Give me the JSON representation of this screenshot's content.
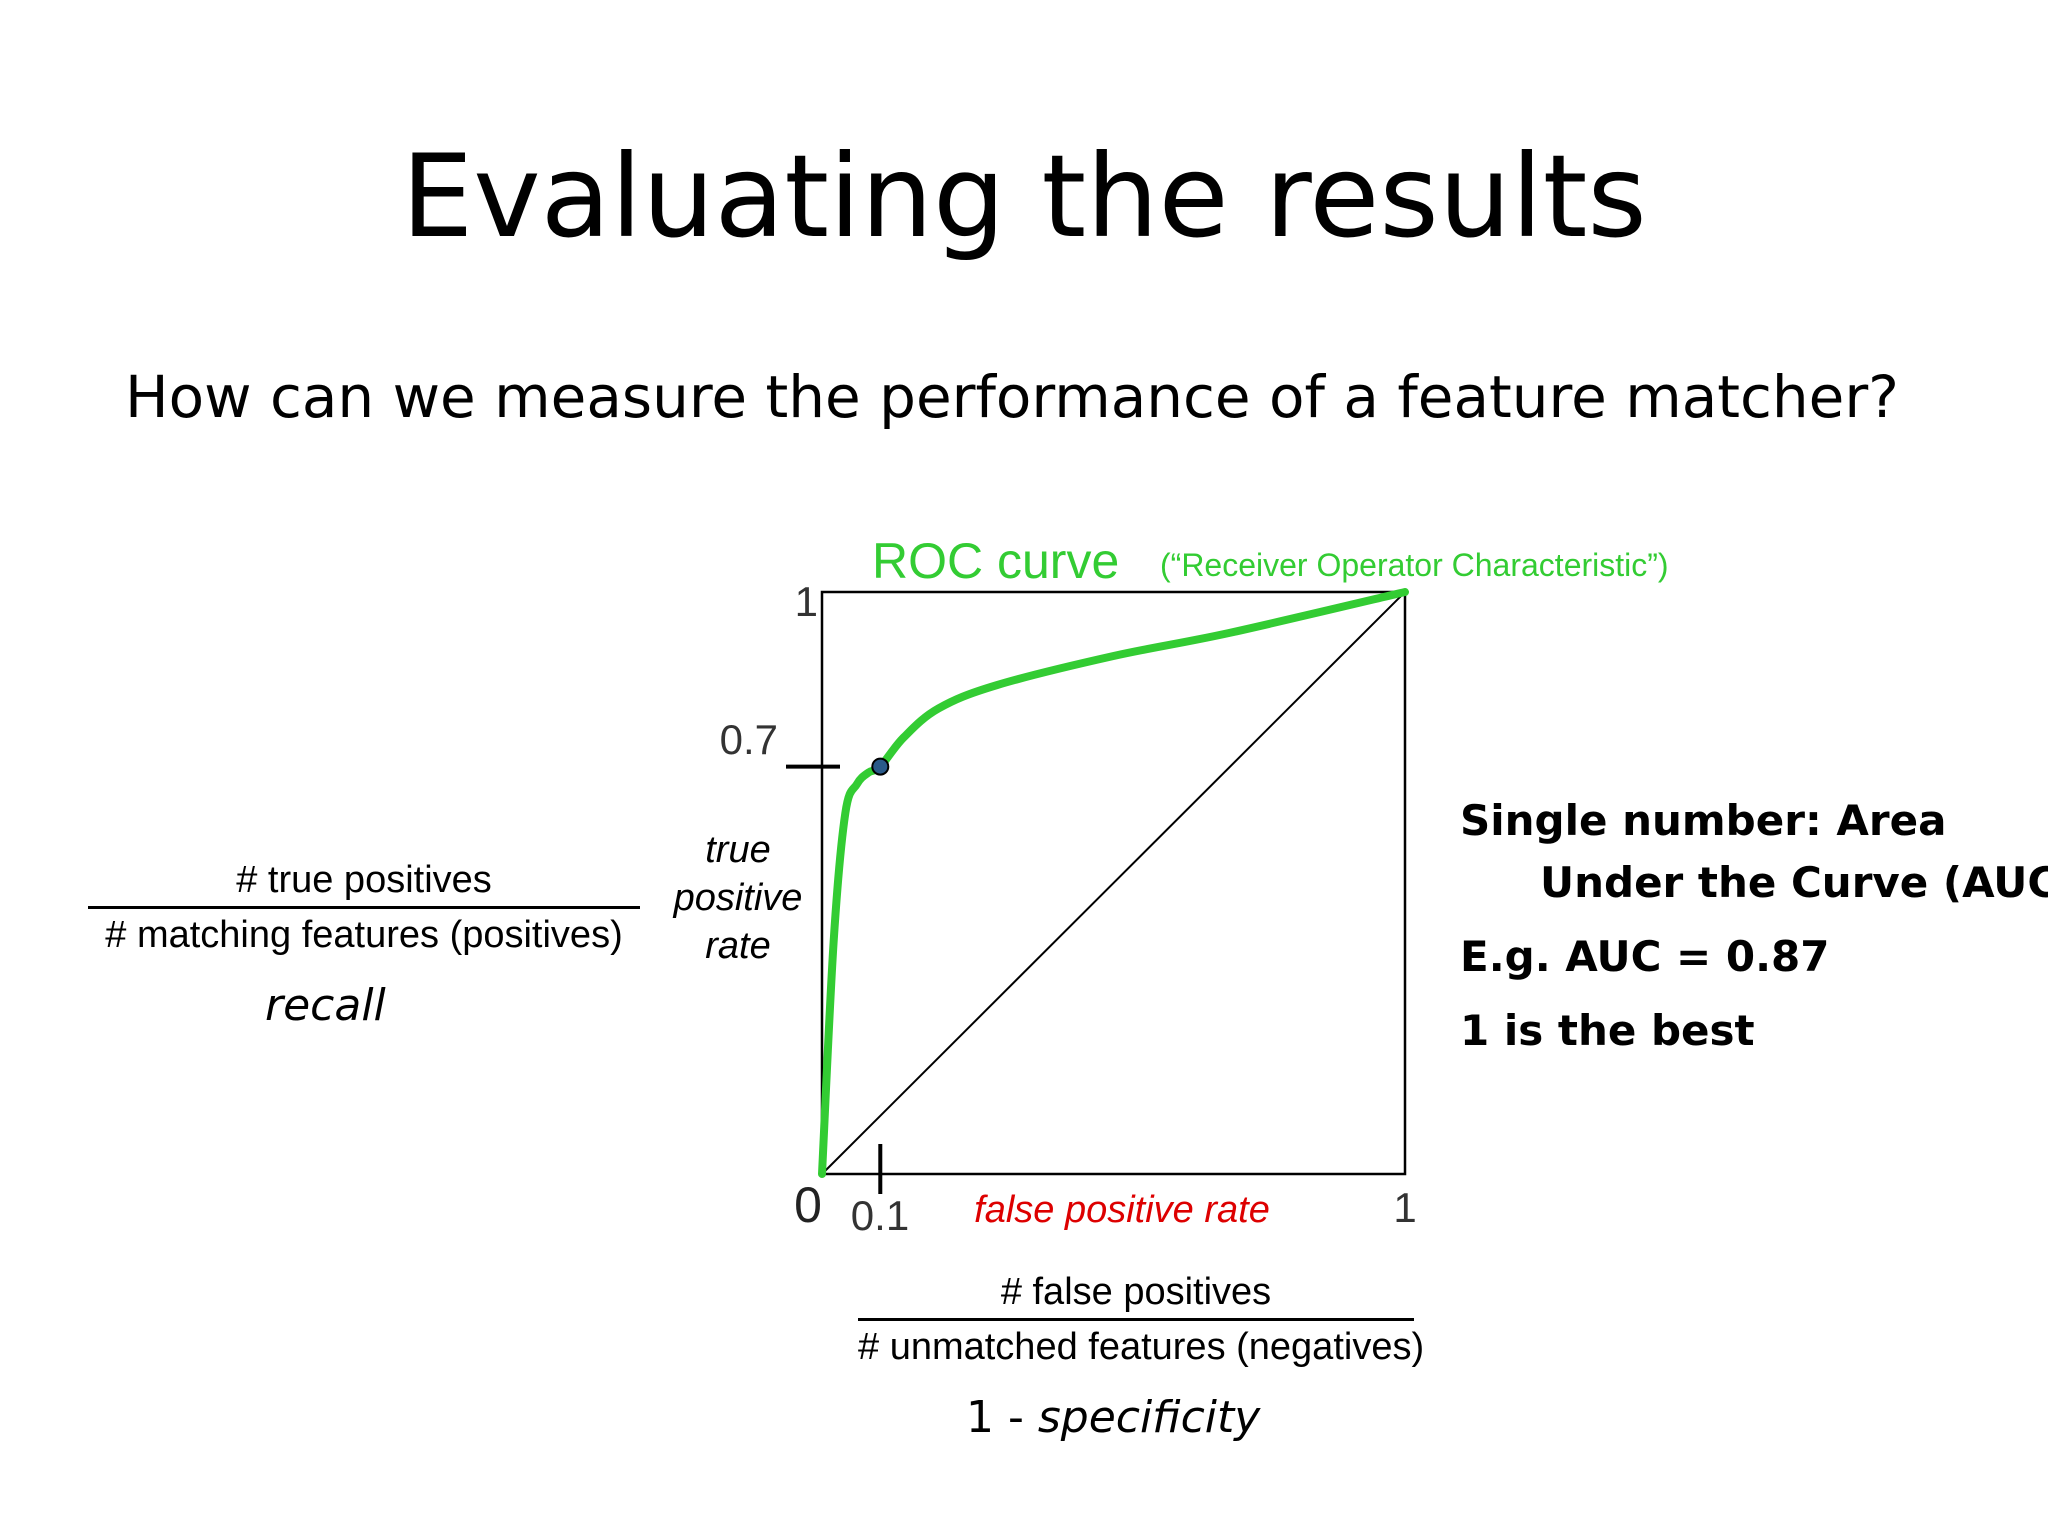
{
  "slide": {
    "title": "Evaluating the results",
    "subtitle": "How can we measure the performance of a feature matcher?"
  },
  "left_fraction": {
    "numerator": "# true positives",
    "denominator": "# matching features (positives)",
    "caption": "recall"
  },
  "bottom_fraction": {
    "numerator": "# false positives",
    "denominator": "# unmatched features (negatives)",
    "caption_prefix": "1 - ",
    "caption_italic": "specificity"
  },
  "auc_text": {
    "line1": "Single number: Area",
    "line2": "Under the Curve (AUC)",
    "line3": "E.g. AUC = 0.87",
    "line4": "1 is the best"
  },
  "colors": {
    "curve": "#33cc33",
    "axis_label": "#dd0000",
    "axis": "#000000",
    "marker": "#2a5a8a"
  },
  "chart_data": {
    "type": "line",
    "title": "ROC curve",
    "subtitle": "(“Receiver Operator Characteristic”)",
    "xlabel": "false positive rate",
    "ylabel": "true positive rate",
    "xlim": [
      0,
      1
    ],
    "ylim": [
      0,
      1
    ],
    "x_tick_labels": [
      "0",
      "0.1",
      "1"
    ],
    "y_tick_labels": [
      "0.7",
      "1"
    ],
    "grid": false,
    "series": [
      {
        "x": [
          0,
          0.02,
          0.04,
          0.06,
          0.08,
          0.1,
          0.14,
          0.2,
          0.3,
          0.5,
          0.7,
          1.0
        ],
        "y": [
          0,
          0.4,
          0.62,
          0.67,
          0.69,
          0.7,
          0.75,
          0.8,
          0.84,
          0.89,
          0.93,
          1.0
        ]
      }
    ],
    "chance_line": {
      "x": [
        0,
        1
      ],
      "y": [
        0,
        1
      ]
    },
    "highlight_point": {
      "x": 0.1,
      "y": 0.7
    },
    "highlight_ticks": {
      "x": 0.1,
      "y": 0.7
    }
  }
}
